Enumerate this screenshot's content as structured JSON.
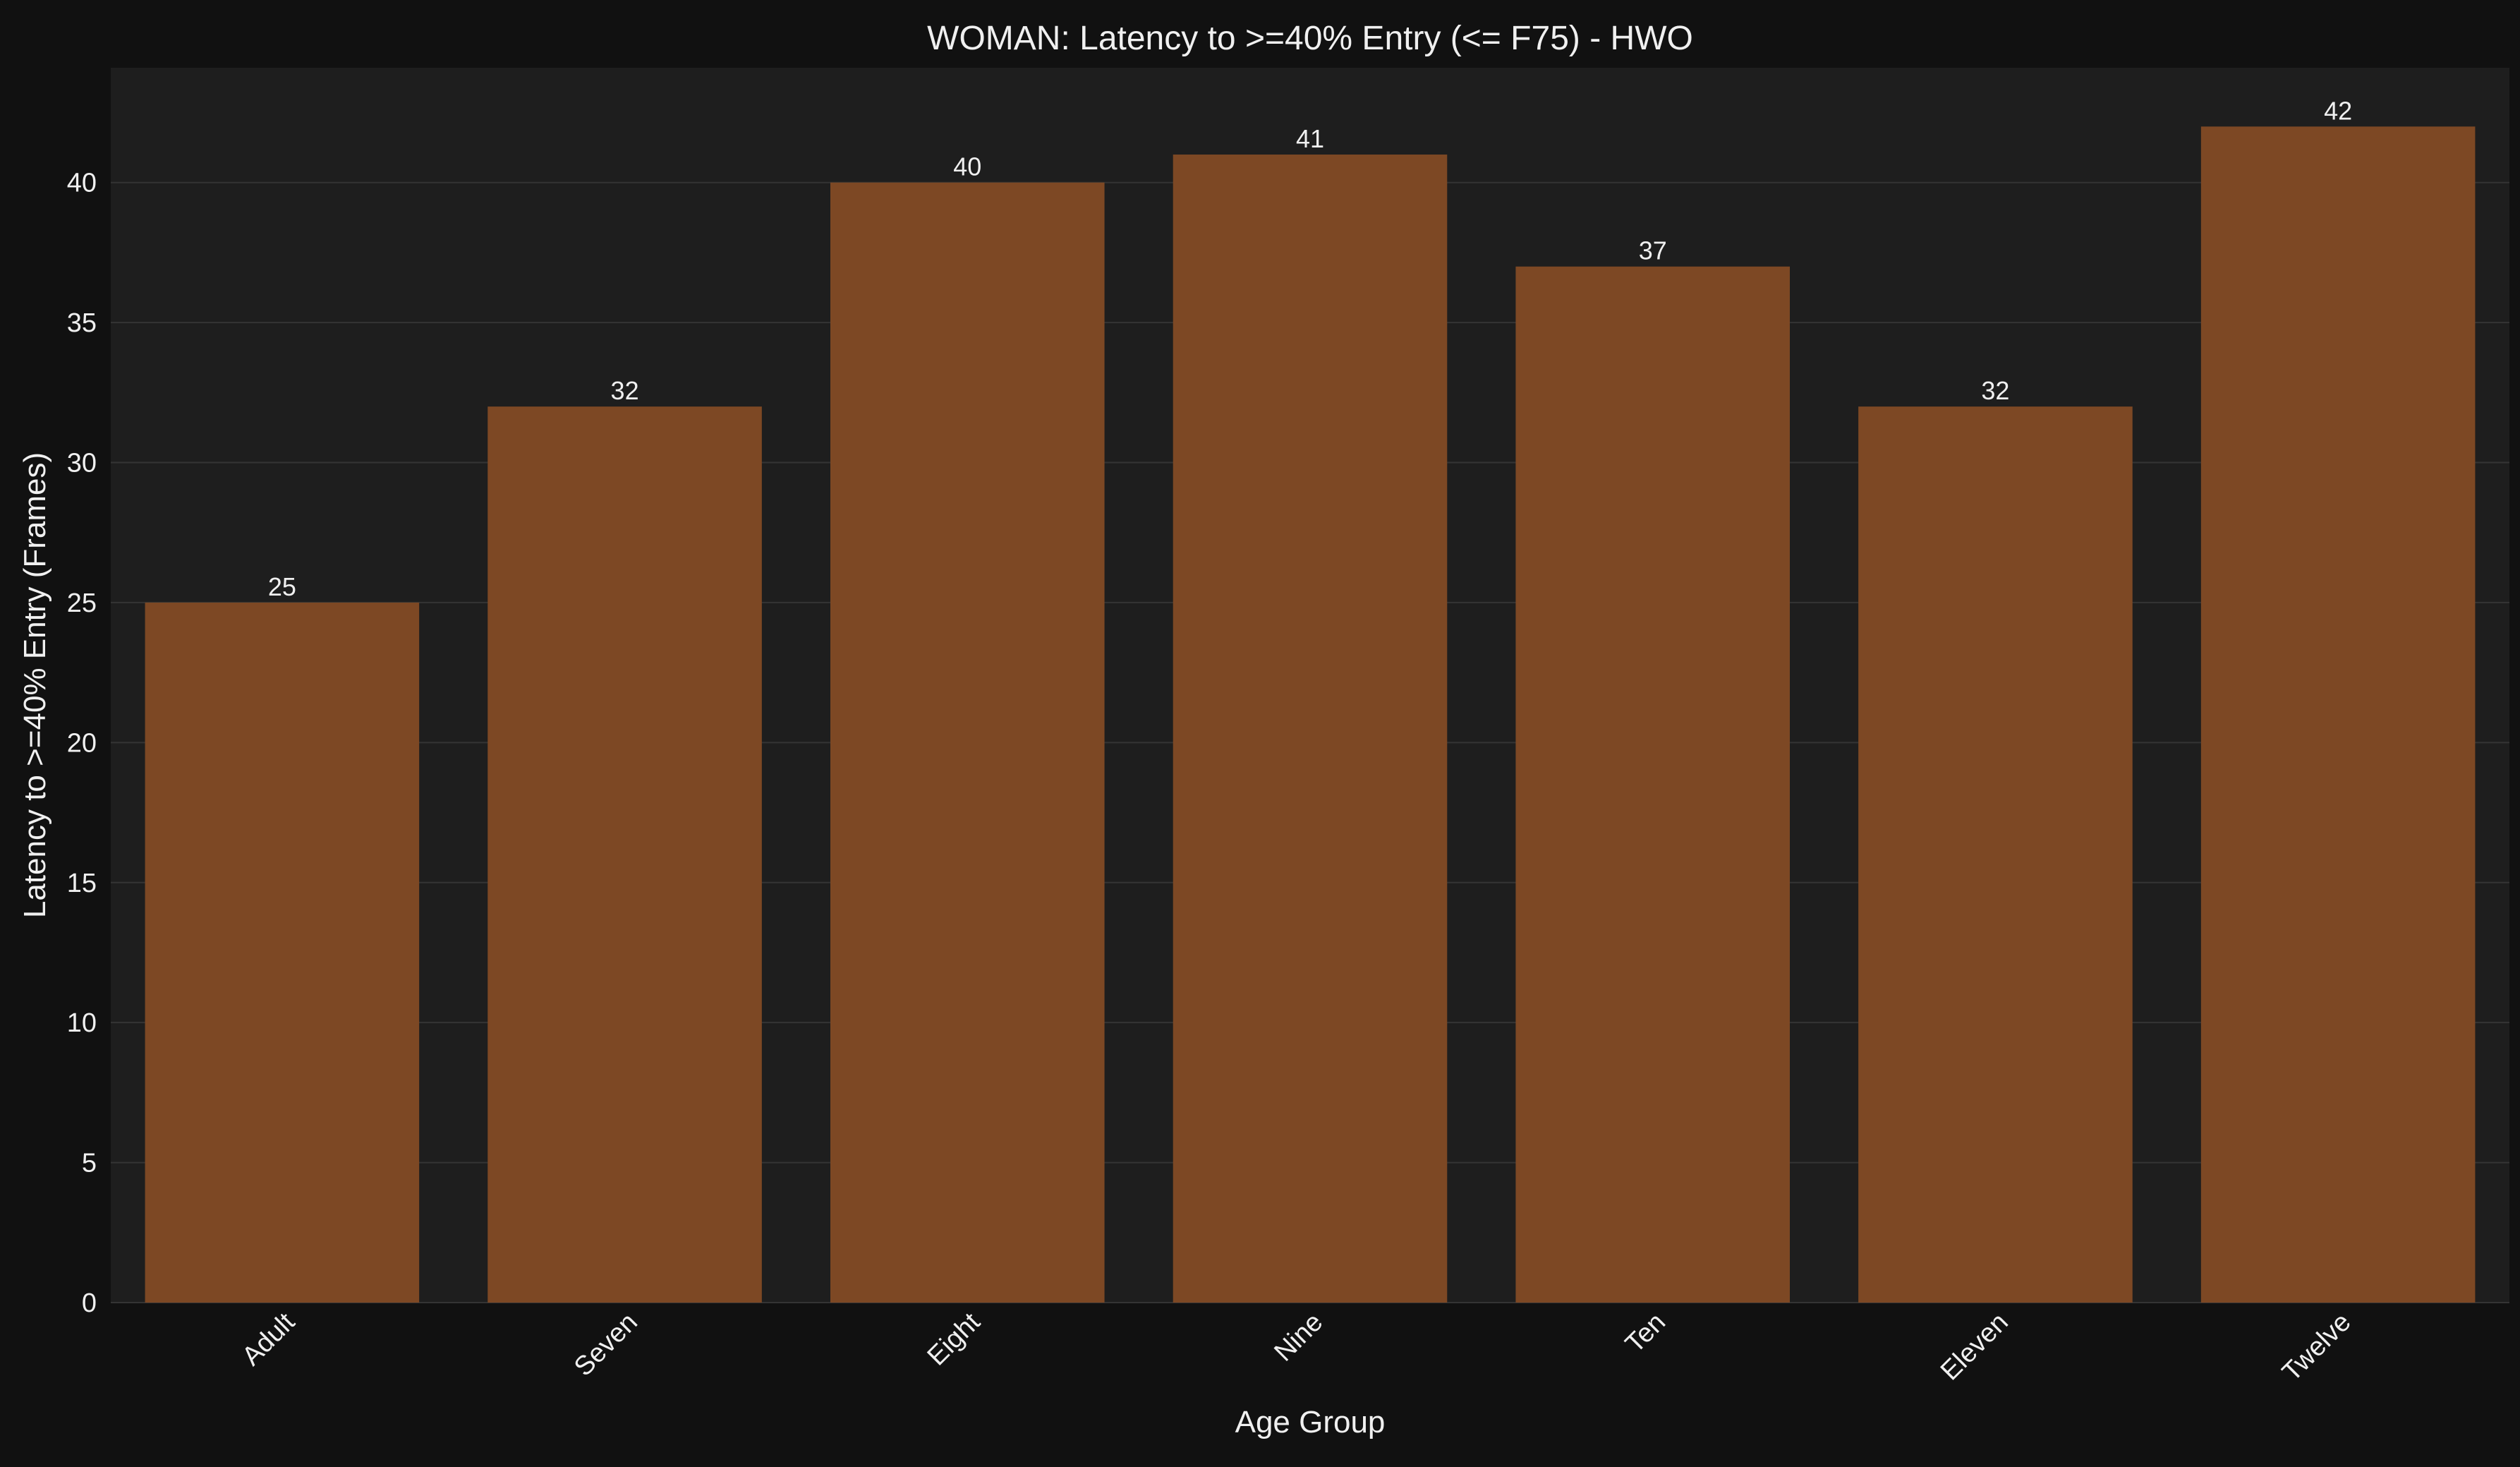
{
  "colors": {
    "page_background": "#111111",
    "plot_background": "#1e1e1e",
    "bar": "#7d4824",
    "text": "#f0f0f0",
    "grid": "#343434"
  },
  "chart_data": {
    "type": "bar",
    "title": "WOMAN: Latency to >=40% Entry (<= F75) - HWO",
    "xlabel": "Age Group",
    "ylabel": "Latency to >=40% Entry (Frames)",
    "categories": [
      "Adult",
      "Seven",
      "Eight",
      "Nine",
      "Ten",
      "Eleven",
      "Twelve"
    ],
    "values": [
      25,
      32,
      40,
      41,
      37,
      32,
      42
    ],
    "ylim": [
      0,
      44.1
    ],
    "yticks": [
      0,
      5,
      10,
      15,
      20,
      25,
      30,
      35,
      40
    ],
    "grid": true,
    "data_labels": true,
    "xtick_rotation_deg": 45
  }
}
